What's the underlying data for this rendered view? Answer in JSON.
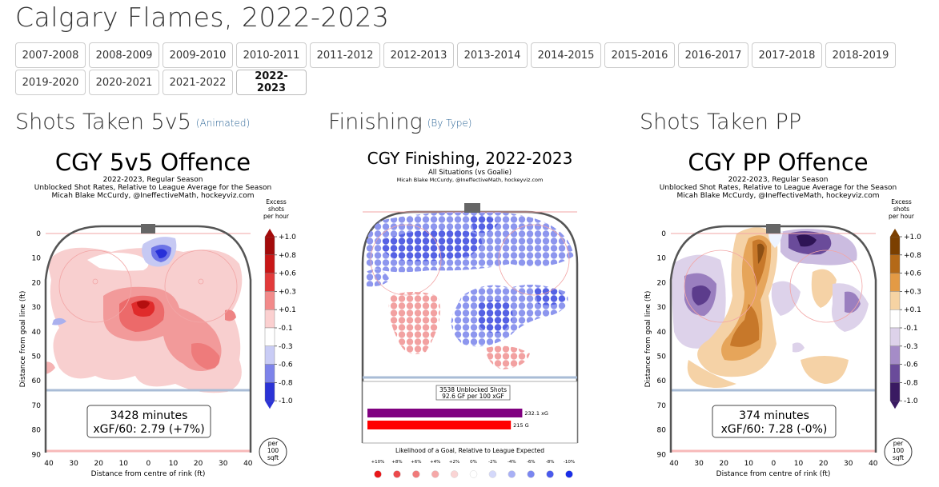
{
  "page": {
    "title": "Calgary Flames, 2022-2023"
  },
  "seasons": [
    "2007-2008",
    "2008-2009",
    "2009-2010",
    "2010-2011",
    "2011-2012",
    "2012-2013",
    "2013-2014",
    "2014-2015",
    "2015-2016",
    "2016-2017",
    "2017-2018",
    "2018-2019",
    "2019-2020",
    "2020-2021",
    "2021-2022",
    "2022-2023"
  ],
  "active_season": "2022-2023",
  "sections": {
    "s1": {
      "title": "Shots Taken 5v5",
      "link": "(Animated)"
    },
    "s2": {
      "title": "Finishing",
      "link": "(By Type)"
    },
    "s3": {
      "title": "Shots Taken PP",
      "link": ""
    }
  },
  "colors": {
    "red": "#e8282a",
    "blue": "#2e3de0",
    "purple": "#4b1f6f",
    "orange": "#c97a1e",
    "xg_bar": "#800080",
    "g_bar": "#ff0000"
  },
  "chart_data": [
    {
      "type": "heatmap",
      "title": "CGY 5v5 Offence",
      "subtitle1": "2022-2023, Regular Season",
      "subtitle2": "Unblocked Shot Rates, Relative to League Average for the Season",
      "credit": "Micah Blake McCurdy, @IneffectiveMath, hockeyviz.com",
      "xlabel": "Distance from centre of rink (ft)",
      "ylabel": "Distance from goal line (ft)",
      "x_ticks": [
        "40",
        "30",
        "20",
        "10",
        "0",
        "10",
        "20",
        "30",
        "40"
      ],
      "y_ticks": [
        "0",
        "10",
        "20",
        "30",
        "40",
        "50",
        "60",
        "70",
        "80",
        "90"
      ],
      "colorbar_title": [
        "Excess",
        "shots",
        "per hour"
      ],
      "colorbar_ticks": [
        "+1.0",
        "+0.8",
        "+0.6",
        "+0.3",
        "+0.1",
        "-0.1",
        "-0.3",
        "-0.6",
        "-0.8",
        "-1.0"
      ],
      "unit_badge": [
        "per",
        "100",
        "sqft"
      ],
      "summary_line1": "3428 minutes",
      "summary_line2": "xGF/60: 2.79 (+7%)"
    },
    {
      "type": "heatmap",
      "title": "CGY Finishing, 2022-2023",
      "subtitle1": "All Situations (vs Goalie)",
      "credit": "Micah Blake McCurdy, @IneffectiveMath, hockeyviz.com",
      "stats_line1": "3538 Unblocked Shots",
      "stats_line2": "92.6 GF per 100 xGF",
      "bars": [
        {
          "label": "232.1 xG",
          "value": 232.1
        },
        {
          "label": "215 G",
          "value": 215
        }
      ],
      "legend_title": "Likelihood of a Goal, Relative to League Expected",
      "legend_ticks": [
        "+10%",
        "+8%",
        "+6%",
        "+4%",
        "+2%",
        "0%",
        "-2%",
        "-4%",
        "-6%",
        "-8%",
        "-10%"
      ],
      "legend_colors": [
        "#e8181a",
        "#ec4a4c",
        "#f07a7a",
        "#f5a8a8",
        "#fad4d4",
        "#ffffff",
        "#d4d8fa",
        "#a8b0f5",
        "#7a86f0",
        "#4a5aec",
        "#1a2ee8"
      ]
    },
    {
      "type": "heatmap",
      "title": "CGY PP Offence",
      "subtitle1": "2022-2023, Regular Season",
      "subtitle2": "Unblocked Shot Rates, Relative to League Average for the Season",
      "credit": "Micah Blake McCurdy, @IneffectiveMath, hockeyviz.com",
      "xlabel": "Distance from centre of rink (ft)",
      "ylabel": "Distance from goal line (ft)",
      "x_ticks": [
        "40",
        "30",
        "20",
        "10",
        "0",
        "10",
        "20",
        "30",
        "40"
      ],
      "y_ticks": [
        "0",
        "10",
        "20",
        "30",
        "40",
        "50",
        "60",
        "70",
        "80",
        "90"
      ],
      "colorbar_title": [
        "Excess",
        "shots",
        "per hour"
      ],
      "colorbar_ticks": [
        "+1.0",
        "+0.8",
        "+0.6",
        "+0.3",
        "+0.1",
        "-0.1",
        "-0.3",
        "-0.6",
        "-0.8",
        "-1.0"
      ],
      "unit_badge": [
        "per",
        "100",
        "sqft"
      ],
      "summary_line1": "374 minutes",
      "summary_line2": "xGF/60: 7.28 (-0%)"
    }
  ]
}
